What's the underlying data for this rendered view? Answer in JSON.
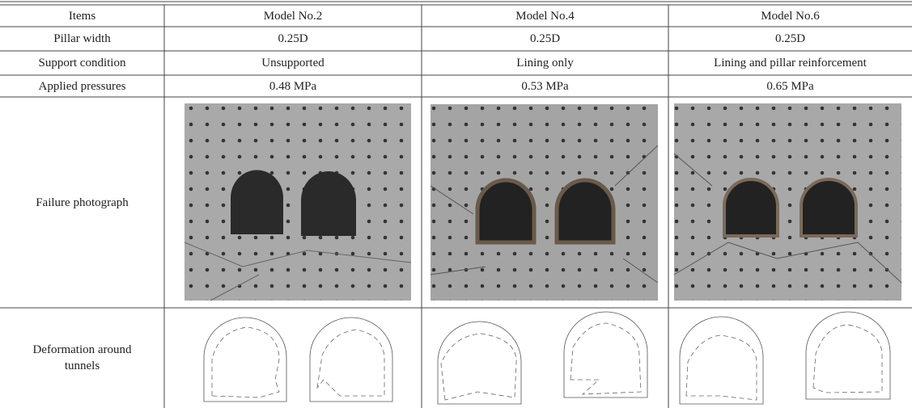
{
  "table": {
    "header": [
      "Items",
      "Model No.2",
      "Model No.4",
      "Model No.6"
    ],
    "rows": [
      [
        "Pillar width",
        "0.25D",
        "0.25D",
        "0.25D"
      ],
      [
        "Support condition",
        "Unsupported",
        "Lining only",
        "Lining and pillar reinforcement"
      ],
      [
        "Applied pressures",
        "0.48 MPa",
        "0.53 MPa",
        "0.65 MPa"
      ]
    ],
    "failure_label": "Failure photograph",
    "deformation_label": "Deformation around tunnels"
  }
}
